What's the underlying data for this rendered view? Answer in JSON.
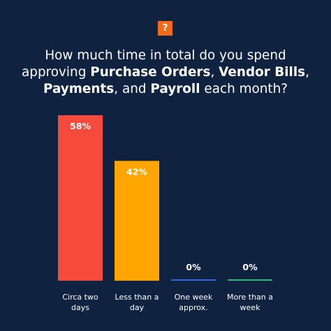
{
  "badge": {
    "symbol": "?",
    "color": "#f26a1b"
  },
  "title": {
    "t1": "How much time in total do you spend approving ",
    "b1": "Purchase Orders",
    "t2": ", ",
    "b2": "Vendor Bills",
    "t3": ", ",
    "b3": "Payments",
    "t4": ", and ",
    "b4": "Payroll",
    "t5": " each month?"
  },
  "colors": {
    "background": "#0f2240",
    "text": "#ffffff"
  },
  "chart_data": {
    "type": "bar",
    "categories": [
      [
        "Circa two",
        "days"
      ],
      [
        "Less than a",
        "day"
      ],
      [
        "One week",
        "approx."
      ],
      [
        "More than a",
        "week"
      ]
    ],
    "values": [
      58,
      42,
      0,
      0
    ],
    "value_labels": [
      "58%",
      "42%",
      "0%",
      "0%"
    ],
    "bar_colors": [
      "#f54a3c",
      "#ffa502",
      "#2f68e0",
      "#2fb87a"
    ],
    "ylim": [
      0,
      58
    ],
    "grid": false,
    "legend": "none"
  }
}
